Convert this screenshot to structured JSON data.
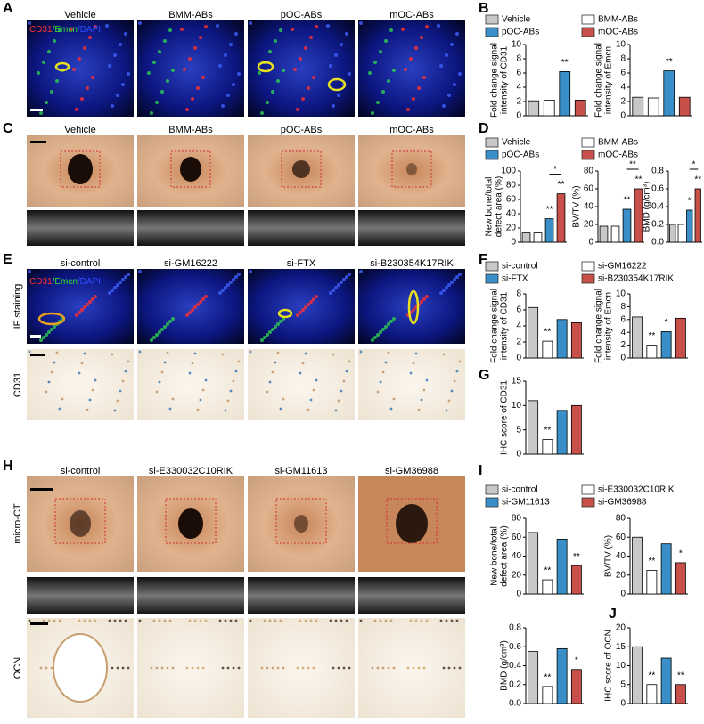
{
  "panels": {
    "A": {
      "label": "A",
      "captions": [
        "Vehicle",
        "BMM-ABs",
        "pOC-ABs",
        "mOC-ABs"
      ],
      "stain": [
        "CD31",
        "/Emcn",
        "/DAPI"
      ]
    },
    "B": {
      "label": "B",
      "legend": [
        {
          "name": "Vehicle",
          "color": "#c8c8c8"
        },
        {
          "name": "BMM-ABs",
          "color": "#ffffff"
        },
        {
          "name": "pOC-ABs",
          "color": "#3a8fc8"
        },
        {
          "name": "mOC-ABs",
          "color": "#c8504a"
        }
      ]
    },
    "C": {
      "label": "C",
      "captions": [
        "Vehicle",
        "BMM-ABs",
        "pOC-ABs",
        "mOC-ABs"
      ]
    },
    "D": {
      "label": "D",
      "legend": [
        {
          "name": "Vehicle",
          "color": "#c8c8c8"
        },
        {
          "name": "BMM-ABs",
          "color": "#ffffff"
        },
        {
          "name": "pOC-ABs",
          "color": "#3a8fc8"
        },
        {
          "name": "mOC-ABs",
          "color": "#c8504a"
        }
      ]
    },
    "E": {
      "label": "E",
      "captions": [
        "si-control",
        "si-GM16222",
        "si-FTX",
        "si-B230354K17RIK"
      ],
      "stain": [
        "CD31",
        "/Emcn",
        "/DAPI"
      ],
      "row_labels": [
        "IF staining",
        "CD31"
      ]
    },
    "F": {
      "label": "F",
      "legend": [
        {
          "name": "si-control",
          "color": "#c8c8c8"
        },
        {
          "name": "si-GM16222",
          "color": "#ffffff"
        },
        {
          "name": "si-FTX",
          "color": "#3a8fc8"
        },
        {
          "name": "si-B230354K17RIK",
          "color": "#c8504a"
        }
      ]
    },
    "G": {
      "label": "G"
    },
    "H": {
      "label": "H",
      "captions": [
        "si-control",
        "si-E330032C10RIK",
        "si-GM11613",
        "si-GM36988"
      ],
      "row_labels": [
        "micro-CT",
        "OCN"
      ]
    },
    "I": {
      "label": "I",
      "legend": [
        {
          "name": "si-control",
          "color": "#c8c8c8"
        },
        {
          "name": "si-E330032C10RIK",
          "color": "#ffffff"
        },
        {
          "name": "si-GM11613",
          "color": "#3a8fc8"
        },
        {
          "name": "si-GM36988",
          "color": "#c8504a"
        }
      ]
    },
    "J": {
      "label": "J"
    }
  },
  "chart_data": [
    {
      "type": "bar",
      "ylabel": [
        "Fold change signal",
        "intensity of CD31"
      ],
      "values": [
        2.1,
        2.2,
        6.2,
        2.2
      ],
      "colors": [
        "#c8c8c8",
        "#ffffff",
        "#3a8fc8",
        "#c8504a"
      ],
      "ylim": [
        0,
        10
      ],
      "yticks": [
        0,
        2,
        4,
        6,
        8,
        10
      ],
      "significance": [
        null,
        null,
        "**",
        null
      ]
    },
    {
      "type": "bar",
      "ylabel": [
        "Fold change signal",
        "intensity of Emcn"
      ],
      "values": [
        2.6,
        2.5,
        6.3,
        2.6
      ],
      "colors": [
        "#c8c8c8",
        "#ffffff",
        "#3a8fc8",
        "#c8504a"
      ],
      "ylim": [
        0,
        10
      ],
      "yticks": [
        0,
        2,
        4,
        6,
        8,
        10
      ],
      "significance": [
        null,
        null,
        "**",
        null
      ]
    },
    {
      "type": "bar",
      "ylabel": [
        "New bone/total",
        "defect area (%)"
      ],
      "values": [
        13,
        13,
        33,
        68
      ],
      "colors": [
        "#c8c8c8",
        "#ffffff",
        "#3a8fc8",
        "#c8504a"
      ],
      "ylim": [
        0,
        100
      ],
      "yticks": [
        0,
        20,
        40,
        60,
        80,
        100
      ],
      "significance": [
        null,
        null,
        "**",
        "**"
      ],
      "bracket_label": "*"
    },
    {
      "type": "bar",
      "ylabel": [
        "BV/TV (%)"
      ],
      "values": [
        18,
        18,
        37,
        60
      ],
      "colors": [
        "#c8c8c8",
        "#ffffff",
        "#3a8fc8",
        "#c8504a"
      ],
      "ylim": [
        0,
        80
      ],
      "yticks": [
        0,
        20,
        40,
        60,
        80
      ],
      "significance": [
        null,
        null,
        "**",
        "**"
      ],
      "bracket_label": "**"
    },
    {
      "type": "bar",
      "ylabel": [
        "BMD (g/cm³)"
      ],
      "values": [
        0.2,
        0.2,
        0.36,
        0.6
      ],
      "colors": [
        "#c8c8c8",
        "#ffffff",
        "#3a8fc8",
        "#c8504a"
      ],
      "ylim": [
        0,
        0.8
      ],
      "yticks": [
        {
          "value": 0,
          "label": "0.0"
        },
        0.2,
        0.4,
        0.6,
        0.8
      ],
      "significance": [
        null,
        null,
        "*",
        "**"
      ],
      "bracket_label": "*"
    },
    {
      "type": "bar",
      "ylabel": [
        "Fold change signal",
        "intensity of CD31"
      ],
      "values": [
        6.3,
        2.1,
        4.8,
        4.4
      ],
      "colors": [
        "#c8c8c8",
        "#ffffff",
        "#3a8fc8",
        "#c8504a"
      ],
      "ylim": [
        0,
        8
      ],
      "yticks": [
        0,
        2,
        4,
        6,
        8
      ],
      "significance": [
        null,
        "**",
        null,
        null
      ]
    },
    {
      "type": "bar",
      "ylabel": [
        "Fold change signal",
        "intensity of Emcn"
      ],
      "values": [
        6.4,
        2.0,
        4.1,
        6.2
      ],
      "colors": [
        "#c8c8c8",
        "#ffffff",
        "#3a8fc8",
        "#c8504a"
      ],
      "ylim": [
        0,
        10
      ],
      "yticks": [
        0,
        2,
        4,
        6,
        8,
        10
      ],
      "significance": [
        null,
        "**",
        "*",
        null
      ]
    },
    {
      "type": "bar",
      "ylabel": [
        "IHC score of CD31"
      ],
      "values": [
        11,
        3,
        9,
        10
      ],
      "colors": [
        "#c8c8c8",
        "#ffffff",
        "#3a8fc8",
        "#c8504a"
      ],
      "ylim": [
        0,
        15
      ],
      "yticks": [
        0,
        5,
        10,
        15
      ],
      "significance": [
        null,
        "**",
        null,
        null
      ]
    },
    {
      "type": "bar",
      "ylabel": [
        "New bone/total",
        "defect area (%)"
      ],
      "values": [
        65,
        15,
        58,
        30
      ],
      "colors": [
        "#c8c8c8",
        "#ffffff",
        "#3a8fc8",
        "#c8504a"
      ],
      "ylim": [
        0,
        80
      ],
      "yticks": [
        0,
        20,
        40,
        60,
        80
      ],
      "significance": [
        null,
        "**",
        null,
        "**"
      ]
    },
    {
      "type": "bar",
      "ylabel": [
        "BV/TV (%)"
      ],
      "values": [
        60,
        25,
        53,
        33
      ],
      "colors": [
        "#c8c8c8",
        "#ffffff",
        "#3a8fc8",
        "#c8504a"
      ],
      "ylim": [
        0,
        80
      ],
      "yticks": [
        0,
        20,
        40,
        60,
        80
      ],
      "significance": [
        null,
        "**",
        null,
        "*"
      ]
    },
    {
      "type": "bar",
      "ylabel": [
        "BMD (g/cm³)"
      ],
      "values": [
        0.55,
        0.18,
        0.58,
        0.36
      ],
      "colors": [
        "#c8c8c8",
        "#ffffff",
        "#3a8fc8",
        "#c8504a"
      ],
      "ylim": [
        0,
        0.8
      ],
      "yticks": [
        {
          "value": 0,
          "label": "0.0"
        },
        0.2,
        0.4,
        0.6,
        0.8
      ],
      "significance": [
        null,
        "**",
        null,
        "*"
      ]
    },
    {
      "type": "bar",
      "ylabel": [
        "IHC score of OCN"
      ],
      "values": [
        15,
        5,
        12,
        5
      ],
      "colors": [
        "#c8c8c8",
        "#ffffff",
        "#3a8fc8",
        "#c8504a"
      ],
      "ylim": [
        0,
        20
      ],
      "yticks": [
        0,
        5,
        10,
        15,
        20
      ],
      "significance": [
        null,
        "**",
        null,
        "**"
      ]
    }
  ]
}
